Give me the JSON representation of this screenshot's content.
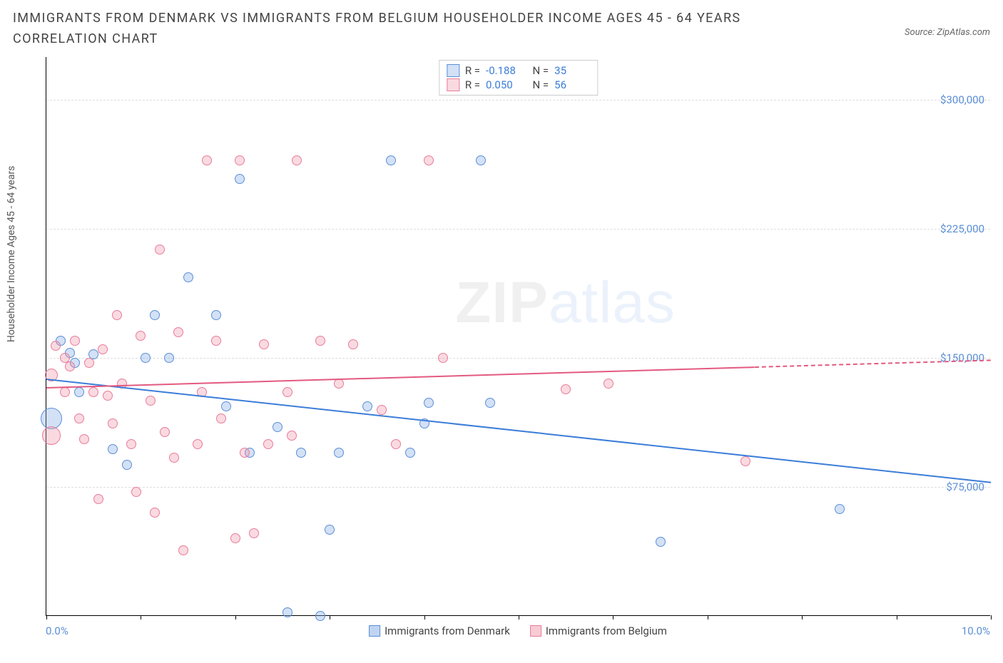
{
  "header": {
    "title": "IMMIGRANTS FROM DENMARK VS IMMIGRANTS FROM BELGIUM HOUSEHOLDER INCOME AGES 45 - 64 YEARS CORRELATION CHART",
    "source": "Source: ZipAtlas.com"
  },
  "chart": {
    "type": "scatter",
    "y_axis_label": "Householder Income Ages 45 - 64 years",
    "x_left_label": "0.0%",
    "x_right_label": "10.0%",
    "xlim": [
      0,
      10
    ],
    "ylim": [
      0,
      325000
    ],
    "x_ticks": [
      0,
      1,
      2,
      3,
      4,
      5,
      6,
      7,
      8,
      9,
      10
    ],
    "y_gridlines": [
      {
        "value": 75000,
        "label": "$75,000"
      },
      {
        "value": 150000,
        "label": "$150,000"
      },
      {
        "value": 225000,
        "label": "$225,000"
      },
      {
        "value": 300000,
        "label": "$300,000"
      }
    ],
    "background_color": "#ffffff",
    "grid_color": "#dddddd",
    "series": [
      {
        "name": "Immigrants from Denmark",
        "color_fill": "rgba(130,170,230,0.35)",
        "color_stroke": "#5b8fd6",
        "trend_color": "#3b7dd8",
        "R": "-0.188",
        "N": "35",
        "trend": {
          "x1": 0,
          "y1": 138000,
          "x2": 10,
          "y2": 78000
        },
        "points": [
          {
            "x": 0.05,
            "y": 115000,
            "r": 15
          },
          {
            "x": 0.15,
            "y": 160000,
            "r": 7
          },
          {
            "x": 0.25,
            "y": 153000,
            "r": 7
          },
          {
            "x": 0.3,
            "y": 147000,
            "r": 7
          },
          {
            "x": 0.35,
            "y": 130000,
            "r": 7
          },
          {
            "x": 0.5,
            "y": 152000,
            "r": 7
          },
          {
            "x": 0.7,
            "y": 97000,
            "r": 7
          },
          {
            "x": 0.85,
            "y": 88000,
            "r": 7
          },
          {
            "x": 1.05,
            "y": 150000,
            "r": 7
          },
          {
            "x": 1.15,
            "y": 175000,
            "r": 7
          },
          {
            "x": 1.3,
            "y": 150000,
            "r": 7
          },
          {
            "x": 1.5,
            "y": 197000,
            "r": 7
          },
          {
            "x": 1.8,
            "y": 175000,
            "r": 7
          },
          {
            "x": 1.9,
            "y": 122000,
            "r": 7
          },
          {
            "x": 2.05,
            "y": 254000,
            "r": 7
          },
          {
            "x": 2.15,
            "y": 95000,
            "r": 7
          },
          {
            "x": 2.45,
            "y": 110000,
            "r": 7
          },
          {
            "x": 2.55,
            "y": 2000,
            "r": 7
          },
          {
            "x": 2.7,
            "y": 95000,
            "r": 7
          },
          {
            "x": 2.9,
            "y": 0,
            "r": 7
          },
          {
            "x": 3.0,
            "y": 50000,
            "r": 7
          },
          {
            "x": 3.1,
            "y": 95000,
            "r": 7
          },
          {
            "x": 3.4,
            "y": 122000,
            "r": 7
          },
          {
            "x": 3.65,
            "y": 265000,
            "r": 7
          },
          {
            "x": 3.85,
            "y": 95000,
            "r": 7
          },
          {
            "x": 4.0,
            "y": 112000,
            "r": 7
          },
          {
            "x": 4.05,
            "y": 124000,
            "r": 7
          },
          {
            "x": 4.6,
            "y": 265000,
            "r": 7
          },
          {
            "x": 4.7,
            "y": 124000,
            "r": 7
          },
          {
            "x": 6.5,
            "y": 43000,
            "r": 7
          },
          {
            "x": 8.4,
            "y": 62000,
            "r": 7
          }
        ]
      },
      {
        "name": "Immigrants from Belgium",
        "color_fill": "rgba(240,150,170,0.35)",
        "color_stroke": "#e87c9a",
        "trend_color": "#e35a80",
        "R": "0.050",
        "N": "56",
        "trend": {
          "x1": 0,
          "y1": 133000,
          "x2": 7.5,
          "y2": 145000,
          "x2_dash": 10,
          "y2_dash": 149000
        },
        "points": [
          {
            "x": 0.05,
            "y": 140000,
            "r": 9
          },
          {
            "x": 0.05,
            "y": 105000,
            "r": 13
          },
          {
            "x": 0.1,
            "y": 157000,
            "r": 7
          },
          {
            "x": 0.2,
            "y": 150000,
            "r": 7
          },
          {
            "x": 0.2,
            "y": 130000,
            "r": 7
          },
          {
            "x": 0.25,
            "y": 145000,
            "r": 7
          },
          {
            "x": 0.3,
            "y": 160000,
            "r": 7
          },
          {
            "x": 0.35,
            "y": 115000,
            "r": 7
          },
          {
            "x": 0.4,
            "y": 103000,
            "r": 7
          },
          {
            "x": 0.45,
            "y": 147000,
            "r": 7
          },
          {
            "x": 0.5,
            "y": 130000,
            "r": 7
          },
          {
            "x": 0.55,
            "y": 68000,
            "r": 7
          },
          {
            "x": 0.6,
            "y": 155000,
            "r": 7
          },
          {
            "x": 0.65,
            "y": 128000,
            "r": 7
          },
          {
            "x": 0.7,
            "y": 112000,
            "r": 7
          },
          {
            "x": 0.75,
            "y": 175000,
            "r": 7
          },
          {
            "x": 0.8,
            "y": 135000,
            "r": 7
          },
          {
            "x": 0.9,
            "y": 100000,
            "r": 7
          },
          {
            "x": 0.95,
            "y": 72000,
            "r": 7
          },
          {
            "x": 1.0,
            "y": 163000,
            "r": 7
          },
          {
            "x": 1.1,
            "y": 125000,
            "r": 7
          },
          {
            "x": 1.15,
            "y": 60000,
            "r": 7
          },
          {
            "x": 1.2,
            "y": 213000,
            "r": 7
          },
          {
            "x": 1.25,
            "y": 107000,
            "r": 7
          },
          {
            "x": 1.35,
            "y": 92000,
            "r": 7
          },
          {
            "x": 1.4,
            "y": 165000,
            "r": 7
          },
          {
            "x": 1.45,
            "y": 38000,
            "r": 7
          },
          {
            "x": 1.6,
            "y": 100000,
            "r": 7
          },
          {
            "x": 1.65,
            "y": 130000,
            "r": 7
          },
          {
            "x": 1.7,
            "y": 265000,
            "r": 7
          },
          {
            "x": 1.8,
            "y": 160000,
            "r": 7
          },
          {
            "x": 1.85,
            "y": 115000,
            "r": 7
          },
          {
            "x": 2.0,
            "y": 45000,
            "r": 7
          },
          {
            "x": 2.05,
            "y": 265000,
            "r": 7
          },
          {
            "x": 2.1,
            "y": 95000,
            "r": 7
          },
          {
            "x": 2.2,
            "y": 48000,
            "r": 7
          },
          {
            "x": 2.3,
            "y": 158000,
            "r": 7
          },
          {
            "x": 2.35,
            "y": 100000,
            "r": 7
          },
          {
            "x": 2.55,
            "y": 130000,
            "r": 7
          },
          {
            "x": 2.6,
            "y": 105000,
            "r": 7
          },
          {
            "x": 2.65,
            "y": 265000,
            "r": 7
          },
          {
            "x": 2.9,
            "y": 160000,
            "r": 7
          },
          {
            "x": 3.1,
            "y": 135000,
            "r": 7
          },
          {
            "x": 3.25,
            "y": 158000,
            "r": 7
          },
          {
            "x": 3.55,
            "y": 120000,
            "r": 7
          },
          {
            "x": 3.7,
            "y": 100000,
            "r": 7
          },
          {
            "x": 4.05,
            "y": 265000,
            "r": 7
          },
          {
            "x": 4.2,
            "y": 150000,
            "r": 7
          },
          {
            "x": 5.5,
            "y": 132000,
            "r": 7
          },
          {
            "x": 5.95,
            "y": 135000,
            "r": 7
          },
          {
            "x": 7.4,
            "y": 90000,
            "r": 7
          }
        ]
      }
    ],
    "legend_bottom": [
      {
        "label": "Immigrants from Denmark",
        "fill": "rgba(130,170,230,0.5)",
        "stroke": "#5b8fd6"
      },
      {
        "label": "Immigrants from Belgium",
        "fill": "rgba(240,150,170,0.5)",
        "stroke": "#e87c9a"
      }
    ],
    "watermark": {
      "bold": "ZIP",
      "light": "atlas"
    }
  }
}
